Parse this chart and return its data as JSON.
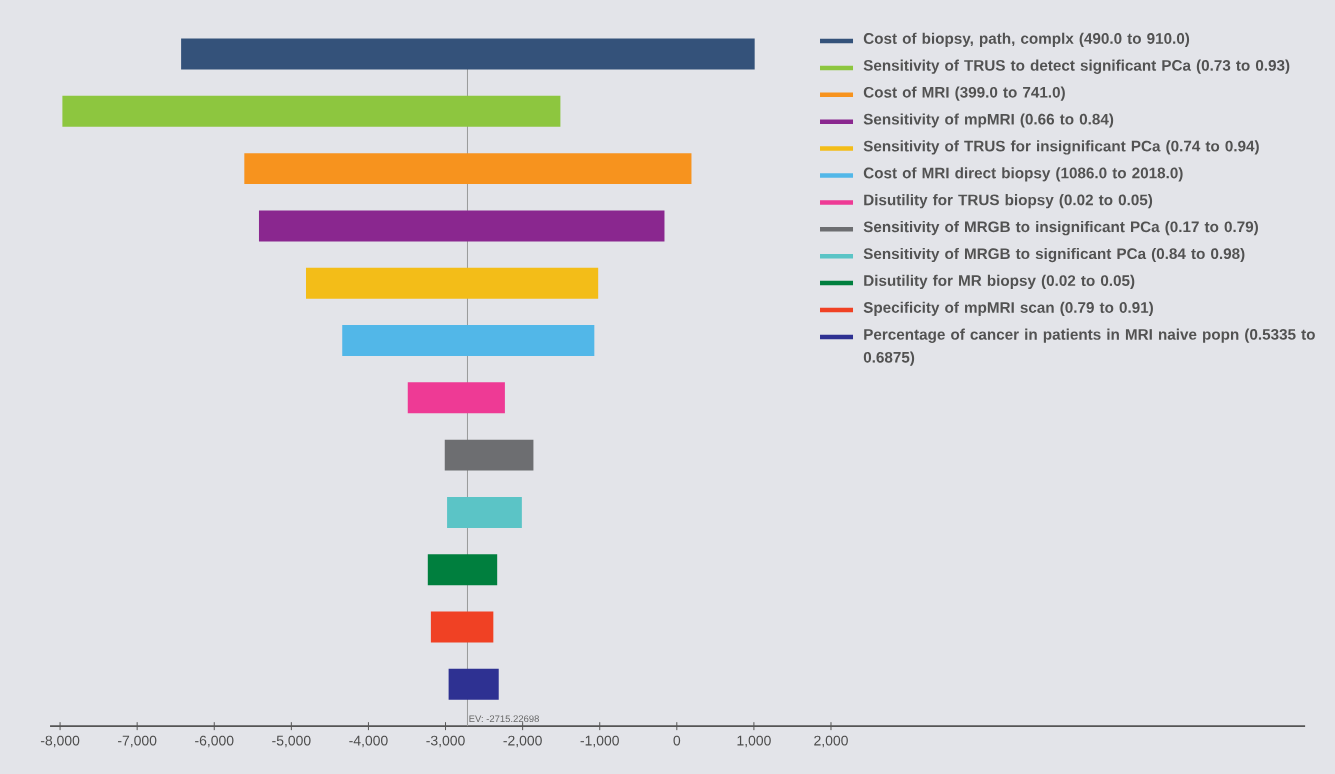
{
  "chart_data": {
    "type": "bar",
    "orientation": "horizontal",
    "legend": "top right",
    "categories": [
      null,
      null,
      null,
      null,
      null,
      null,
      null,
      null,
      null,
      null,
      null,
      null
    ],
    "series": [
      {
        "name": "Cost of biopsy, path, complx (490.0 to 910.0)",
        "color": "#34527a",
        "base": [
          -6430,
          null,
          null,
          null,
          null,
          null,
          null,
          null,
          null,
          null,
          null,
          null
        ],
        "values": [
          7440,
          null,
          null,
          null,
          null,
          null,
          null,
          null,
          null,
          null,
          null,
          null
        ]
      },
      {
        "name": "Sensitivity of TRUS to detect significant PCa (0.73 to 0.93)",
        "color": "#8dc63f",
        "base": [
          null,
          -7970,
          null,
          null,
          null,
          null,
          null,
          null,
          null,
          null,
          null,
          null
        ],
        "values": [
          null,
          6460,
          null,
          null,
          null,
          null,
          null,
          null,
          null,
          null,
          null,
          null
        ]
      },
      {
        "name": "Cost of MRI (399.0 to 741.0)",
        "color": "#f7931e",
        "base": [
          null,
          null,
          -5610,
          null,
          null,
          null,
          null,
          null,
          null,
          null,
          null,
          null
        ],
        "values": [
          null,
          null,
          5800,
          null,
          null,
          null,
          null,
          null,
          null,
          null,
          null,
          null
        ]
      },
      {
        "name": "Sensitivity of mpMRI (0.66 to 0.84)",
        "color": "#8a278f",
        "base": [
          null,
          null,
          null,
          -5420,
          null,
          null,
          null,
          null,
          null,
          null,
          null,
          null
        ],
        "values": [
          null,
          null,
          null,
          5260,
          null,
          null,
          null,
          null,
          null,
          null,
          null,
          null
        ]
      },
      {
        "name": "Sensitivity of TRUS for insignificant PCa (0.74 to 0.94)",
        "color": "#f3bd18",
        "base": [
          null,
          null,
          null,
          null,
          -4810,
          null,
          null,
          null,
          null,
          null,
          null,
          null
        ],
        "values": [
          null,
          null,
          null,
          null,
          3790,
          null,
          null,
          null,
          null,
          null,
          null,
          null
        ]
      },
      {
        "name": "Cost of MRI direct biopsy (1086.0 to 2018.0)",
        "color": "#52b7e8",
        "base": [
          null,
          null,
          null,
          null,
          null,
          -4340,
          null,
          null,
          null,
          null,
          null,
          null
        ],
        "values": [
          null,
          null,
          null,
          null,
          null,
          3270,
          null,
          null,
          null,
          null,
          null,
          null
        ]
      },
      {
        "name": "Disutility for TRUS biopsy (0.02 to 0.05)",
        "color": "#ee3a95",
        "base": [
          null,
          null,
          null,
          null,
          null,
          null,
          -3490,
          null,
          null,
          null,
          null,
          null
        ],
        "values": [
          null,
          null,
          null,
          null,
          null,
          null,
          1260,
          null,
          null,
          null,
          null,
          null
        ]
      },
      {
        "name": "Sensitivity of MRGB to insignificant PCa (0.17 to 0.79)",
        "color": "#6d6e71",
        "base": [
          null,
          null,
          null,
          null,
          null,
          null,
          null,
          -3010,
          null,
          null,
          null,
          null
        ],
        "values": [
          null,
          null,
          null,
          null,
          null,
          null,
          null,
          1150,
          null,
          null,
          null,
          null
        ]
      },
      {
        "name": "Sensitivity of MRGB to significant PCa (0.84 to 0.98)",
        "color": "#5bc4c6",
        "base": [
          null,
          null,
          null,
          null,
          null,
          null,
          null,
          null,
          -2980,
          null,
          null,
          null
        ],
        "values": [
          null,
          null,
          null,
          null,
          null,
          null,
          null,
          null,
          970,
          null,
          null,
          null
        ]
      },
      {
        "name": "Disutility for MR biopsy (0.02 to 0.05)",
        "color": "#007f3e",
        "base": [
          null,
          null,
          null,
          null,
          null,
          null,
          null,
          null,
          null,
          -3230,
          null,
          null
        ],
        "values": [
          null,
          null,
          null,
          null,
          null,
          null,
          null,
          null,
          null,
          900,
          null,
          null
        ]
      },
      {
        "name": "Specificity of mpMRI scan (0.79 to 0.91)",
        "color": "#f04124",
        "base": [
          null,
          null,
          null,
          null,
          null,
          null,
          null,
          null,
          null,
          null,
          -3190,
          null
        ],
        "values": [
          null,
          null,
          null,
          null,
          null,
          null,
          null,
          null,
          null,
          null,
          810,
          null
        ]
      },
      {
        "name": "Percentage of cancer in patients in MRI naive popn (0.5335 to 0.6875)",
        "color": "#2e3192",
        "base": [
          null,
          null,
          null,
          null,
          null,
          null,
          null,
          null,
          null,
          null,
          null,
          -2960
        ],
        "values": [
          null,
          null,
          null,
          null,
          null,
          null,
          null,
          null,
          null,
          null,
          null,
          650
        ]
      }
    ],
    "xlim": [
      -8130,
      8150
    ],
    "xticks": [
      {
        "value": -8000,
        "label": "-8,000"
      },
      {
        "value": -7000,
        "label": "-7,000"
      },
      {
        "value": -6000,
        "label": "-6,000"
      },
      {
        "value": -5000,
        "label": "-5,000"
      },
      {
        "value": -4000,
        "label": "-4,000"
      },
      {
        "value": -3000,
        "label": "-3,000"
      },
      {
        "value": -2000,
        "label": "-2,000"
      },
      {
        "value": -1000,
        "label": "-1,000"
      },
      {
        "value": 0,
        "label": "0"
      },
      {
        "value": 1000,
        "label": "1,000"
      },
      {
        "value": 2000,
        "label": "2,000"
      }
    ],
    "ref_lines": [
      {
        "axis": "x",
        "value": -2715.22698,
        "label": "EV: -2715.22698",
        "color": "#9a9a9a"
      }
    ]
  }
}
